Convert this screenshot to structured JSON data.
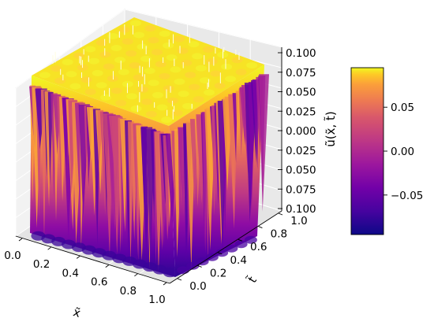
{
  "chart_data": {
    "type": "surface3d",
    "title": "",
    "xlabel": "x̃",
    "ylabel": "t̃",
    "zlabel": "ũ(x̃, t̃)",
    "xlim": [
      0.0,
      1.0
    ],
    "ylim": [
      0.0,
      1.0
    ],
    "zlim": [
      -0.1,
      0.1
    ],
    "x_ticks": [
      "0.0",
      "0.2",
      "0.4",
      "0.6",
      "0.8",
      "1.0"
    ],
    "y_ticks": [
      "0.0",
      "0.2",
      "0.4",
      "0.6",
      "0.8",
      "1.0"
    ],
    "z_ticks": [
      "0.100",
      "0.075",
      "0.050",
      "0.025",
      "0.000",
      "0.025",
      "0.050",
      "0.075",
      "0.100"
    ],
    "colormap": "plasma",
    "colorbar": {
      "ticks": [
        "0.05",
        "0.00",
        "−0.05"
      ],
      "tick_values": [
        0.05,
        0.0,
        -0.05
      ],
      "range": [
        -0.095,
        0.095
      ],
      "placement": "right"
    },
    "grid": true
  }
}
